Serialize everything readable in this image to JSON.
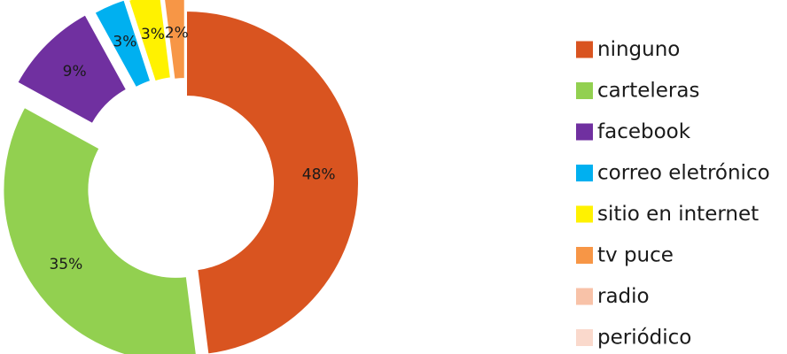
{
  "chart_data": {
    "type": "pie",
    "style": "exploded-donut",
    "title": "",
    "legend_position": "right",
    "slices": [
      {
        "label": "ninguno",
        "value": 48,
        "display": "48%",
        "color": "#D95420"
      },
      {
        "label": "carteleras",
        "value": 35,
        "display": "35%",
        "color": "#92D050"
      },
      {
        "label": "facebook",
        "value": 9,
        "display": "9%",
        "color": "#7030A0"
      },
      {
        "label": "correo eletrónico",
        "value": 3,
        "display": "3%",
        "color": "#00B0F0"
      },
      {
        "label": "sitio en internet",
        "value": 3,
        "display": "3%",
        "color": "#FFF200"
      },
      {
        "label": "tv puce",
        "value": 2,
        "display": "2%",
        "color": "#F79646"
      },
      {
        "label": "radio",
        "value": 0,
        "display": "",
        "color": "#F8C2A8"
      },
      {
        "label": "periódico",
        "value": 0,
        "display": "",
        "color": "#FAD9CC"
      }
    ]
  }
}
